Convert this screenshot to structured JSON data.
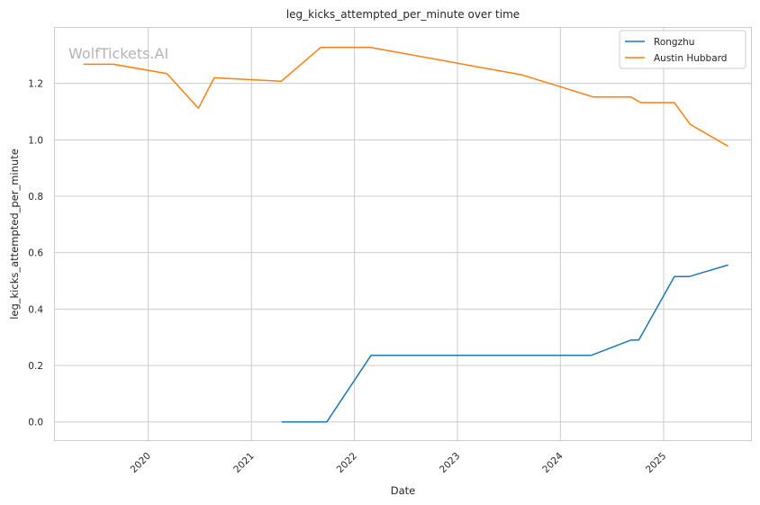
{
  "chart_data": {
    "type": "line",
    "title": "leg_kicks_attempted_per_minute over time",
    "xlabel": "Date",
    "ylabel": "leg_kicks_attempted_per_minute",
    "watermark": "WolfTickets.AI",
    "x_axis": "date",
    "xlim": [
      "2019-02-01",
      "2025-11-10"
    ],
    "ylim": [
      -0.068,
      1.4
    ],
    "x_ticks": [
      {
        "value": "2020-01-01",
        "label": "2020"
      },
      {
        "value": "2021-01-01",
        "label": "2021"
      },
      {
        "value": "2022-01-01",
        "label": "2022"
      },
      {
        "value": "2023-01-01",
        "label": "2023"
      },
      {
        "value": "2024-01-01",
        "label": "2024"
      },
      {
        "value": "2025-01-01",
        "label": "2025"
      }
    ],
    "y_ticks": [
      {
        "value": 0.0,
        "label": "0.0"
      },
      {
        "value": 0.2,
        "label": "0.2"
      },
      {
        "value": 0.4,
        "label": "0.4"
      },
      {
        "value": 0.6,
        "label": "0.6"
      },
      {
        "value": 0.8,
        "label": "0.8"
      },
      {
        "value": 1.0,
        "label": "1.0"
      },
      {
        "value": 1.2,
        "label": "1.2"
      }
    ],
    "grid": true,
    "legend_position": "top-right",
    "series": [
      {
        "name": "Rongzhu",
        "color": "#1f77b4",
        "points": [
          {
            "x": "2021-04-20",
            "y": 0.0
          },
          {
            "x": "2021-09-25",
            "y": 0.0
          },
          {
            "x": "2022-03-01",
            "y": 0.236
          },
          {
            "x": "2024-04-20",
            "y": 0.236
          },
          {
            "x": "2024-09-07",
            "y": 0.29
          },
          {
            "x": "2024-10-05",
            "y": 0.29
          },
          {
            "x": "2025-02-08",
            "y": 0.515
          },
          {
            "x": "2025-04-01",
            "y": 0.515
          },
          {
            "x": "2025-08-16",
            "y": 0.556
          }
        ]
      },
      {
        "name": "Austin Hubbard",
        "color": "#ff7f0e",
        "points": [
          {
            "x": "2019-05-18",
            "y": 1.268
          },
          {
            "x": "2019-08-31",
            "y": 1.268
          },
          {
            "x": "2020-03-07",
            "y": 1.235
          },
          {
            "x": "2020-06-27",
            "y": 1.112
          },
          {
            "x": "2020-08-22",
            "y": 1.22
          },
          {
            "x": "2021-04-17",
            "y": 1.208
          },
          {
            "x": "2021-09-04",
            "y": 1.328
          },
          {
            "x": "2022-02-26",
            "y": 1.328
          },
          {
            "x": "2023-08-19",
            "y": 1.23
          },
          {
            "x": "2024-04-27",
            "y": 1.152
          },
          {
            "x": "2024-09-07",
            "y": 1.152
          },
          {
            "x": "2024-10-12",
            "y": 1.132
          },
          {
            "x": "2025-02-08",
            "y": 1.132
          },
          {
            "x": "2025-04-05",
            "y": 1.055
          },
          {
            "x": "2025-08-16",
            "y": 0.978
          }
        ]
      }
    ]
  }
}
